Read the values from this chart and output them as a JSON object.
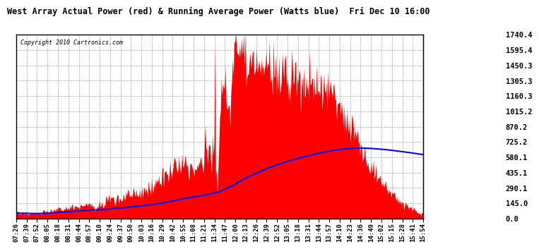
{
  "title": "West Array Actual Power (red) & Running Average Power (Watts blue)  Fri Dec 10 16:00",
  "copyright": "Copyright 2010 Cartronics.com",
  "background_color": "#ffffff",
  "plot_bg_color": "#ffffff",
  "yticks": [
    0.0,
    145.0,
    290.1,
    435.1,
    580.1,
    725.2,
    870.2,
    1015.2,
    1160.3,
    1305.3,
    1450.3,
    1595.4,
    1740.4
  ],
  "ymax": 1740.4,
  "xtick_labels": [
    "07:26",
    "07:39",
    "07:52",
    "08:05",
    "08:18",
    "08:31",
    "08:44",
    "08:57",
    "09:10",
    "09:24",
    "09:37",
    "09:50",
    "10:03",
    "10:16",
    "10:29",
    "10:42",
    "10:55",
    "11:08",
    "11:21",
    "11:34",
    "11:47",
    "12:00",
    "12:13",
    "12:26",
    "12:39",
    "12:52",
    "13:05",
    "13:18",
    "13:31",
    "13:44",
    "13:57",
    "14:10",
    "14:23",
    "14:36",
    "14:49",
    "15:02",
    "15:15",
    "15:28",
    "15:41",
    "15:54"
  ]
}
